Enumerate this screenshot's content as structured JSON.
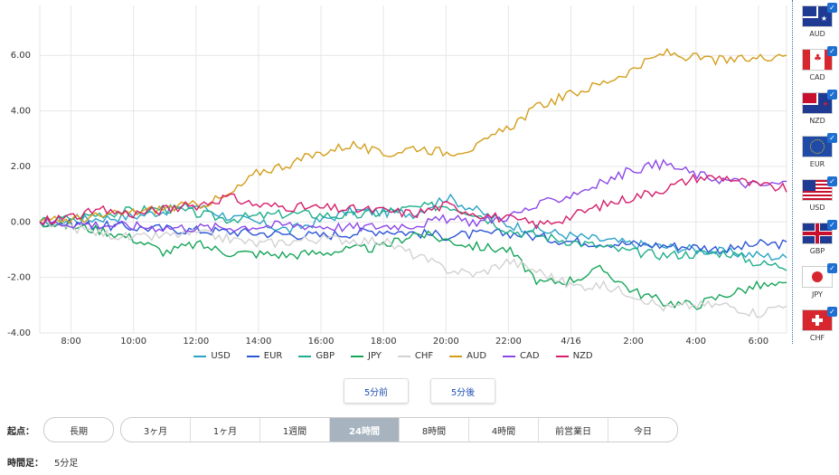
{
  "chart_data": {
    "type": "line",
    "title": "",
    "xlabel": "",
    "ylabel": "",
    "ylim": [
      -4.0,
      7.8
    ],
    "yticks": [
      "6.00",
      "4.00",
      "2.00",
      "0.00",
      "-2.00",
      "-4.00"
    ],
    "ytick_values": [
      6,
      4,
      2,
      0,
      -2,
      -4
    ],
    "xticks": [
      "8:00",
      "10:00",
      "12:00",
      "14:00",
      "16:00",
      "18:00",
      "20:00",
      "22:00",
      "4/16",
      "2:00",
      "4:00",
      "6:00"
    ],
    "xtick_hours": [
      1,
      3,
      5,
      7,
      9,
      11,
      13,
      15,
      17,
      19,
      21,
      23
    ],
    "xlim_hours": [
      0,
      23.9
    ],
    "series": [
      {
        "name": "USD",
        "color": "#2ba3c7",
        "keys": [
          [
            0,
            0
          ],
          [
            3,
            0.2
          ],
          [
            5,
            0.6
          ],
          [
            6,
            0.2
          ],
          [
            8,
            -0.3
          ],
          [
            10,
            0.4
          ],
          [
            12,
            0.3
          ],
          [
            13,
            0.9
          ],
          [
            14,
            0.4
          ],
          [
            15,
            -0.1
          ],
          [
            17,
            -0.5
          ],
          [
            19,
            -0.8
          ],
          [
            21,
            -1.0
          ],
          [
            22,
            -1.1
          ],
          [
            23,
            -1.2
          ],
          [
            23.9,
            -1.3
          ]
        ]
      },
      {
        "name": "EUR",
        "color": "#2c55d6",
        "keys": [
          [
            0,
            0
          ],
          [
            3,
            -0.2
          ],
          [
            5,
            -0.3
          ],
          [
            7,
            -0.4
          ],
          [
            9,
            -0.5
          ],
          [
            11,
            -0.3
          ],
          [
            13,
            -0.5
          ],
          [
            15,
            -0.4
          ],
          [
            17,
            -0.7
          ],
          [
            19,
            -0.8
          ],
          [
            21,
            -0.9
          ],
          [
            22,
            -1.0
          ],
          [
            23,
            -0.8
          ],
          [
            23.9,
            -0.8
          ]
        ]
      },
      {
        "name": "GBP",
        "color": "#1fae8b",
        "keys": [
          [
            0,
            0
          ],
          [
            2,
            0.3
          ],
          [
            4,
            0.5
          ],
          [
            6,
            0.1
          ],
          [
            8,
            0.3
          ],
          [
            10,
            0.2
          ],
          [
            12,
            0.5
          ],
          [
            13,
            0.6
          ],
          [
            14,
            0.3
          ],
          [
            15,
            -0.3
          ],
          [
            17,
            -0.7
          ],
          [
            19,
            -1.1
          ],
          [
            20,
            -1.2
          ],
          [
            22,
            -1.1
          ],
          [
            23,
            -1.5
          ],
          [
            23.9,
            -1.6
          ]
        ]
      },
      {
        "name": "JPY",
        "color": "#17a55a",
        "keys": [
          [
            0,
            0
          ],
          [
            2,
            -0.3
          ],
          [
            3,
            -0.6
          ],
          [
            4,
            -1.1
          ],
          [
            5,
            -0.8
          ],
          [
            6,
            -1.1
          ],
          [
            8,
            -1.2
          ],
          [
            10,
            -1.0
          ],
          [
            11,
            -0.9
          ],
          [
            12,
            -0.4
          ],
          [
            14,
            -0.9
          ],
          [
            15,
            -1.0
          ],
          [
            16,
            -2.2
          ],
          [
            17,
            -2.1
          ],
          [
            18,
            -1.7
          ],
          [
            19,
            -2.5
          ],
          [
            20,
            -2.9
          ],
          [
            21,
            -3.0
          ],
          [
            22,
            -2.6
          ],
          [
            23,
            -2.3
          ],
          [
            23.9,
            -2.3
          ]
        ]
      },
      {
        "name": "CHF",
        "color": "#d2d2d2",
        "keys": [
          [
            0,
            0
          ],
          [
            2,
            -0.4
          ],
          [
            3,
            -0.6
          ],
          [
            5,
            -0.4
          ],
          [
            7,
            -0.8
          ],
          [
            9,
            -0.6
          ],
          [
            11,
            -0.7
          ],
          [
            12,
            -1.2
          ],
          [
            13,
            -1.7
          ],
          [
            14,
            -1.9
          ],
          [
            15,
            -1.4
          ],
          [
            16,
            -1.8
          ],
          [
            17,
            -2.3
          ],
          [
            18,
            -2.3
          ],
          [
            19,
            -2.6
          ],
          [
            20,
            -3.1
          ],
          [
            21,
            -3.0
          ],
          [
            22,
            -3.0
          ],
          [
            23,
            -3.3
          ],
          [
            23.9,
            -2.9
          ]
        ]
      },
      {
        "name": "AUD",
        "color": "#d39e1c",
        "keys": [
          [
            0,
            0
          ],
          [
            2,
            0.2
          ],
          [
            4,
            0.5
          ],
          [
            5,
            0.6
          ],
          [
            6,
            0.9
          ],
          [
            7,
            1.8
          ],
          [
            8,
            2.1
          ],
          [
            9,
            2.5
          ],
          [
            10,
            2.8
          ],
          [
            11,
            2.4
          ],
          [
            12,
            2.7
          ],
          [
            13,
            2.5
          ],
          [
            14,
            2.7
          ],
          [
            15,
            3.4
          ],
          [
            16,
            4.2
          ],
          [
            17,
            4.6
          ],
          [
            18,
            5.0
          ],
          [
            19,
            5.5
          ],
          [
            20,
            6.1
          ],
          [
            21,
            5.9
          ],
          [
            22,
            5.8
          ],
          [
            23,
            5.9
          ],
          [
            23.9,
            6.1
          ]
        ]
      },
      {
        "name": "CAD",
        "color": "#8b47e8",
        "keys": [
          [
            0,
            0
          ],
          [
            2,
            -0.1
          ],
          [
            4,
            -0.2
          ],
          [
            6,
            -0.2
          ],
          [
            8,
            -0.1
          ],
          [
            10,
            -0.2
          ],
          [
            12,
            -0.1
          ],
          [
            13,
            0.1
          ],
          [
            14,
            0.0
          ],
          [
            15,
            0.2
          ],
          [
            16,
            0.6
          ],
          [
            17,
            1.0
          ],
          [
            18,
            1.4
          ],
          [
            19,
            1.9
          ],
          [
            20,
            2.1
          ],
          [
            21,
            1.7
          ],
          [
            22,
            1.5
          ],
          [
            23,
            1.3
          ],
          [
            23.9,
            1.4
          ]
        ]
      },
      {
        "name": "NZD",
        "color": "#d61e6b",
        "keys": [
          [
            0,
            0
          ],
          [
            2,
            0.4
          ],
          [
            3,
            0.3
          ],
          [
            5,
            0.6
          ],
          [
            6,
            0.9
          ],
          [
            7,
            0.6
          ],
          [
            9,
            0.5
          ],
          [
            11,
            0.4
          ],
          [
            12,
            0.3
          ],
          [
            13,
            0.6
          ],
          [
            14,
            0.3
          ],
          [
            15,
            0.1
          ],
          [
            16,
            -0.1
          ],
          [
            17,
            0.2
          ],
          [
            18,
            0.6
          ],
          [
            19,
            0.9
          ],
          [
            20,
            1.2
          ],
          [
            21,
            1.6
          ],
          [
            22,
            1.6
          ],
          [
            23,
            1.3
          ],
          [
            23.9,
            1.2
          ]
        ]
      }
    ]
  },
  "legend": [
    "USD",
    "EUR",
    "GBP",
    "JPY",
    "CHF",
    "AUD",
    "CAD",
    "NZD"
  ],
  "flags": [
    {
      "code": "AUD",
      "icon": "australia-flag-icon"
    },
    {
      "code": "CAD",
      "icon": "canada-flag-icon"
    },
    {
      "code": "NZD",
      "icon": "new-zealand-flag-icon"
    },
    {
      "code": "EUR",
      "icon": "eu-flag-icon"
    },
    {
      "code": "USD",
      "icon": "us-flag-icon"
    },
    {
      "code": "GBP",
      "icon": "uk-flag-icon"
    },
    {
      "code": "JPY",
      "icon": "japan-flag-icon"
    },
    {
      "code": "CHF",
      "icon": "swiss-flag-icon"
    }
  ],
  "nav": {
    "prev": "5分前",
    "next": "5分後"
  },
  "start": {
    "label": "起点：",
    "long": "長期",
    "options": [
      "3ヶ月",
      "1ヶ月",
      "1週間",
      "24時間",
      "8時間",
      "4時間",
      "前営業日",
      "今日"
    ],
    "active": "24時間"
  },
  "interval": {
    "label": "時間足：",
    "value": "5分足"
  }
}
